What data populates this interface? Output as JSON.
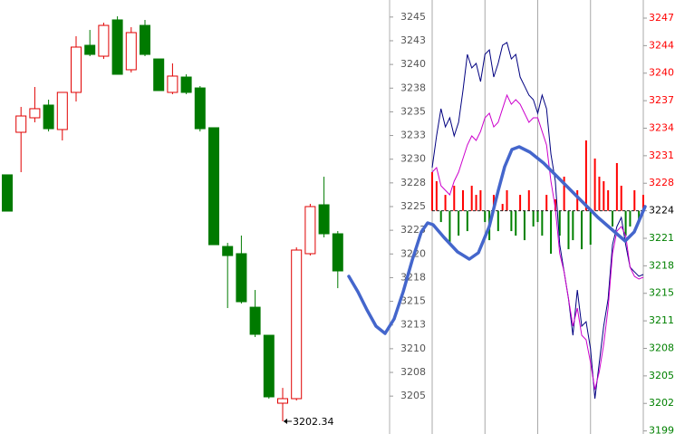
{
  "chart_data": [
    {
      "type": "candlestick",
      "ylim": [
        3201,
        3246.8
      ],
      "color_up": "#e00000",
      "color_down": "#007a00",
      "open": [
        3228.35,
        3232.84,
        3234.37,
        3235.71,
        3233.13,
        3237.05,
        3242.02,
        3240.87,
        3244.7,
        3239.44,
        3244.12,
        3240.58,
        3237.05,
        3238.67,
        3237.52,
        3233.32,
        3220.79,
        3220.03,
        3214.38,
        3211.42,
        3204.25,
        3204.73,
        3220.03,
        3225.19,
        3222.13
      ],
      "high": [
        3228.35,
        3235.52,
        3237.62,
        3236.28,
        3237.05,
        3242.98,
        3243.64,
        3244.41,
        3245.08,
        3243.93,
        3244.7,
        3240.58,
        3240.11,
        3238.96,
        3237.72,
        3233.32,
        3221.17,
        3221.94,
        3216.2,
        3211.42,
        3205.87,
        3220.7,
        3225.29,
        3228.15,
        3222.42
      ],
      "low": [
        3224.52,
        3228.63,
        3233.89,
        3232.93,
        3231.98,
        3236.09,
        3240.87,
        3240.58,
        3238.96,
        3239.15,
        3240.87,
        3237.24,
        3236.86,
        3236.86,
        3232.93,
        3220.98,
        3214.29,
        3214.77,
        3211.23,
        3204.73,
        3202.34,
        3204.54,
        3219.84,
        3221.75,
        3216.39
      ],
      "close": [
        3224.52,
        3234.56,
        3235.33,
        3233.22,
        3237.05,
        3241.83,
        3241.06,
        3244.12,
        3238.96,
        3243.36,
        3241.06,
        3237.24,
        3238.77,
        3237.05,
        3233.22,
        3220.98,
        3219.83,
        3214.96,
        3211.52,
        3204.92,
        3204.73,
        3220.41,
        3225.0,
        3222.13,
        3218.21
      ],
      "annotation": "3202.34"
    },
    {
      "type": "line",
      "x": [
        0,
        5,
        10,
        15,
        20,
        25,
        30,
        35,
        40,
        45,
        50,
        55,
        60,
        65,
        70,
        75,
        80,
        85,
        90,
        95,
        100,
        105,
        110,
        115,
        120,
        125,
        130,
        135,
        140,
        145,
        150,
        155,
        160,
        165,
        170,
        175,
        180,
        185,
        190,
        195,
        200,
        205,
        210,
        215,
        220,
        225,
        230,
        235,
        240
      ],
      "xlim": [
        0,
        240
      ],
      "xticks": [
        0,
        60,
        120,
        180,
        240
      ],
      "ylim": [
        3201,
        3246.8
      ],
      "yticks": [
        3245,
        {
          "value": 3242.5,
          "label": "3243"
        },
        3240,
        {
          "value": 3237.5,
          "label": "3238"
        },
        3235,
        {
          "value": 3232.5,
          "label": "3233"
        },
        3230,
        {
          "value": 3227.5,
          "label": "3228"
        },
        3225,
        {
          "value": 3222.5,
          "label": "3223"
        },
        3220,
        {
          "value": 3217.5,
          "label": "3218"
        },
        3215,
        {
          "value": 3212.5,
          "label": "3213"
        },
        3210,
        {
          "value": 3207.5,
          "label": "3208"
        },
        3205
      ],
      "y2lim": [
        3198.18,
        3248.96
      ],
      "y2ticks": [
        {
          "value": 3246.84,
          "label": "3247"
        },
        {
          "value": 3243.62,
          "label": "3244"
        },
        {
          "value": 3240.4,
          "label": "3240"
        },
        {
          "value": 3237.18,
          "label": "3237"
        },
        {
          "value": 3233.96,
          "label": "3234"
        },
        {
          "value": 3230.74,
          "label": "3231"
        },
        {
          "value": 3227.52,
          "label": "3228"
        },
        {
          "value": 3224.3,
          "label": "3224"
        },
        {
          "value": 3221.08,
          "label": "3221"
        },
        {
          "value": 3217.86,
          "label": "3218"
        },
        {
          "value": 3214.64,
          "label": "3215"
        },
        {
          "value": 3211.42,
          "label": "3211"
        },
        {
          "value": 3208.2,
          "label": "3208"
        },
        {
          "value": 3204.98,
          "label": "3205"
        },
        {
          "value": 3201.76,
          "label": "3202"
        },
        {
          "value": 3198.54,
          "label": "3199"
        }
      ],
      "baseline": 3224.3,
      "grid": true,
      "series": [
        {
          "color": "#000080",
          "values": [
            3229.11,
            3232.46,
            3235.33,
            3233.41,
            3234.37,
            3232.46,
            3233.89,
            3237.24,
            3241.06,
            3239.63,
            3240.11,
            3238.19,
            3241.06,
            3241.54,
            3238.67,
            3240.11,
            3242.02,
            3242.31,
            3240.58,
            3241.06,
            3238.67,
            3237.72,
            3236.76,
            3236.28,
            3234.85,
            3236.76,
            3235.33,
            3230.54,
            3227.68,
            3220.98,
            3218.11,
            3215.25,
            3211.42,
            3216.2,
            3212.38,
            3212.85,
            3209.99,
            3204.73,
            3208.55,
            3212.38,
            3215.25,
            3220.98,
            3222.89,
            3223.85,
            3220.98,
            3218.59,
            3218.11,
            3217.64,
            3217.83
          ]
        },
        {
          "color": "#cc00cc",
          "values": [
            3228.63,
            3229.11,
            3227.2,
            3226.72,
            3226.24,
            3227.68,
            3228.63,
            3230.07,
            3231.5,
            3232.46,
            3231.98,
            3232.93,
            3234.37,
            3234.85,
            3233.41,
            3233.89,
            3235.33,
            3236.76,
            3235.8,
            3236.28,
            3235.8,
            3234.85,
            3233.89,
            3234.37,
            3234.37,
            3232.93,
            3231.5,
            3227.68,
            3224.81,
            3220.03,
            3218.11,
            3215.25,
            3212.38,
            3214.29,
            3211.42,
            3210.94,
            3208.55,
            3205.68,
            3207.6,
            3210.46,
            3214.29,
            3220.03,
            3222.42,
            3222.89,
            3221.94,
            3218.59,
            3217.64,
            3217.35,
            3217.54
          ]
        },
        {
          "type": "bar",
          "axis": "y2",
          "color_up": "#ff0000",
          "color_down": "#008000",
          "values": [
            3228.82,
            3227.76,
            3222.98,
            3226.16,
            3220.33,
            3227.23,
            3221.39,
            3226.7,
            3221.92,
            3227.23,
            3226.16,
            3226.7,
            3222.98,
            3220.86,
            3226.16,
            3221.92,
            3225.1,
            3226.7,
            3221.92,
            3221.39,
            3226.16,
            3220.86,
            3226.7,
            3222.46,
            3222.98,
            3221.39,
            3226.16,
            3219.27,
            3225.64,
            3221.39,
            3228.29,
            3219.8,
            3220.86,
            3226.7,
            3219.8,
            3232.53,
            3220.33,
            3230.41,
            3228.29,
            3227.76,
            3226.7,
            3222.46,
            3229.88,
            3227.23,
            3221.39,
            3222.46,
            3226.7,
            3222.98,
            3226.16
          ]
        }
      ]
    }
  ]
}
